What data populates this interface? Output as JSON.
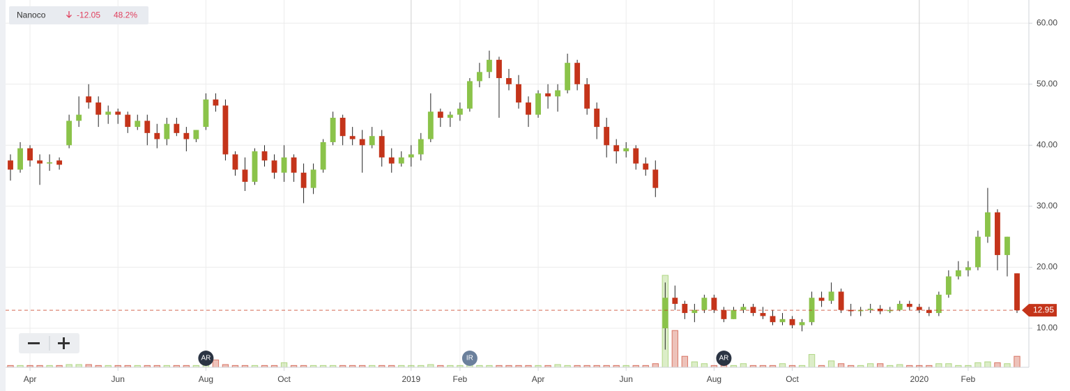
{
  "chart_data": {
    "type": "candlestick",
    "change": "-12.05",
    "change_pct": "48.2%",
    "up_color": "#8bc34a",
    "down_color": "#c4341a",
    "wick_color": "#222222",
    "grid": true,
    "ylim": [
      3.6,
      63.8
    ],
    "yticks": [
      {
        "value": 10,
        "label": "10.00"
      },
      {
        "value": 20,
        "label": "20.00"
      },
      {
        "value": 30,
        "label": "30.00"
      },
      {
        "value": 40,
        "label": "40.00"
      },
      {
        "value": 50,
        "label": "50.00"
      },
      {
        "value": 60,
        "label": "60.00"
      }
    ],
    "last_price": 12.95,
    "last_price_color": "#c4341a",
    "categories": [
      null,
      null,
      "Apr",
      null,
      null,
      null,
      null,
      null,
      null,
      null,
      null,
      "Jun",
      null,
      null,
      null,
      null,
      null,
      null,
      null,
      null,
      "Aug",
      null,
      null,
      null,
      null,
      null,
      null,
      null,
      "Oct",
      null,
      null,
      null,
      null,
      null,
      null,
      null,
      null,
      null,
      null,
      null,
      null,
      "2019",
      null,
      null,
      null,
      null,
      "Feb",
      null,
      null,
      null,
      null,
      null,
      null,
      null,
      "Apr",
      null,
      null,
      null,
      null,
      null,
      null,
      null,
      null,
      "Jun",
      null,
      null,
      null,
      null,
      null,
      null,
      null,
      null,
      "Aug",
      null,
      null,
      null,
      null,
      null,
      null,
      null,
      "Oct",
      null,
      null,
      null,
      null,
      null,
      null,
      null,
      null,
      null,
      null,
      null,
      null,
      "2020",
      null,
      null,
      null,
      null,
      "Feb",
      null,
      null,
      null,
      null,
      null
    ],
    "events": [
      null,
      null,
      null,
      null,
      null,
      null,
      null,
      null,
      null,
      null,
      null,
      null,
      null,
      null,
      null,
      null,
      null,
      null,
      null,
      null,
      "AR",
      null,
      null,
      null,
      null,
      null,
      null,
      null,
      null,
      null,
      null,
      null,
      null,
      null,
      null,
      null,
      null,
      null,
      null,
      null,
      null,
      null,
      null,
      null,
      null,
      null,
      null,
      "IR",
      null,
      null,
      null,
      null,
      null,
      null,
      null,
      null,
      null,
      null,
      null,
      null,
      null,
      null,
      null,
      null,
      null,
      null,
      null,
      null,
      null,
      null,
      null,
      null,
      null,
      "AR",
      null,
      null,
      null,
      null,
      null,
      null,
      null,
      null,
      null,
      null,
      null,
      null,
      null,
      null,
      null,
      null,
      null,
      null,
      null,
      null,
      null,
      null,
      null,
      null,
      null,
      null,
      null,
      null,
      null,
      null
    ],
    "event_colors": {
      "AR": "#2b3443",
      "IR": "#6b809c"
    },
    "volume_lim": [
      0,
      100
    ],
    "volume": [
      2,
      2,
      2,
      2,
      2,
      2,
      3,
      3,
      3,
      2,
      2,
      2,
      2,
      2,
      2,
      2,
      2,
      2,
      2,
      2,
      5,
      8,
      3,
      2,
      2,
      2,
      2,
      2,
      5,
      2,
      2,
      2,
      2,
      2,
      2,
      2,
      2,
      2,
      2,
      2,
      2,
      2,
      2,
      3,
      2,
      2,
      2,
      3,
      2,
      2,
      2,
      2,
      2,
      2,
      2,
      2,
      3,
      2,
      2,
      2,
      2,
      2,
      2,
      2,
      2,
      2,
      4,
      100,
      40,
      12,
      6,
      4,
      2,
      2,
      2,
      4,
      2,
      2,
      2,
      4,
      2,
      2,
      14,
      2,
      7,
      4,
      2,
      2,
      4,
      4,
      2,
      3,
      2,
      2,
      2,
      4,
      4,
      2,
      2,
      5,
      6,
      5,
      4,
      12
    ],
    "series": [
      {
        "name": "Nanoco",
        "values": [
          [
            37.5,
            38.5,
            34.2,
            36.0
          ],
          [
            36,
            40.5,
            35.5,
            39.5
          ],
          [
            39.5,
            40,
            36.5,
            37.5
          ],
          [
            37.5,
            38.5,
            33.5,
            37
          ],
          [
            37,
            38.5,
            35.8,
            37.2
          ],
          [
            37.5,
            38,
            36,
            36.8
          ],
          [
            40,
            45,
            39.5,
            44
          ],
          [
            44,
            48,
            43,
            45
          ],
          [
            48,
            50,
            46,
            47
          ],
          [
            47,
            48,
            43,
            45
          ],
          [
            45,
            46.5,
            43.5,
            45.5
          ],
          [
            45.5,
            46,
            43.5,
            45
          ],
          [
            45,
            45.5,
            42,
            43
          ],
          [
            43,
            45,
            42.5,
            44
          ],
          [
            44,
            45,
            40,
            42
          ],
          [
            42,
            43.5,
            39.5,
            41
          ],
          [
            41,
            44.5,
            40,
            43.5
          ],
          [
            43.5,
            44.5,
            41.5,
            42
          ],
          [
            42,
            43,
            39,
            41
          ],
          [
            41,
            42.5,
            40.5,
            42.5
          ],
          [
            43,
            48.5,
            42.5,
            47.5
          ],
          [
            47.5,
            48.5,
            45.5,
            46.5
          ],
          [
            46.5,
            47.5,
            37.5,
            38.5
          ],
          [
            38.5,
            39,
            35,
            36
          ],
          [
            36,
            38,
            32.5,
            34
          ],
          [
            34,
            39.5,
            33.5,
            39
          ],
          [
            39,
            40,
            36.5,
            37.5
          ],
          [
            37.5,
            38.5,
            34.5,
            35.5
          ],
          [
            35.5,
            40,
            34,
            38
          ],
          [
            38,
            38.5,
            34,
            35.5
          ],
          [
            35.5,
            37,
            30.5,
            33
          ],
          [
            33,
            37,
            32,
            36
          ],
          [
            36,
            41,
            35.5,
            40.5
          ],
          [
            40.5,
            45.5,
            40,
            44.5
          ],
          [
            44.5,
            45,
            40,
            41.5
          ],
          [
            41.5,
            43,
            40,
            41
          ],
          [
            41,
            42.5,
            35.5,
            40
          ],
          [
            40,
            43,
            39.5,
            41.5
          ],
          [
            41.5,
            42.5,
            36.5,
            38
          ],
          [
            38,
            39.5,
            35.5,
            37
          ],
          [
            37,
            39,
            36.5,
            38
          ],
          [
            38,
            40,
            36.5,
            38.5
          ],
          [
            38.5,
            42,
            37.5,
            41
          ],
          [
            41,
            48.5,
            40.5,
            45.5
          ],
          [
            45.5,
            46,
            43,
            44.5
          ],
          [
            44.5,
            45.5,
            43,
            45
          ],
          [
            45,
            47,
            44,
            46
          ],
          [
            46,
            51,
            45.5,
            50.5
          ],
          [
            50.5,
            53.5,
            49.5,
            52
          ],
          [
            52,
            55.5,
            51,
            54
          ],
          [
            54,
            54.5,
            44.5,
            51
          ],
          [
            51,
            52.5,
            49,
            50
          ],
          [
            50,
            51.5,
            46,
            47
          ],
          [
            47,
            48,
            43,
            45
          ],
          [
            45,
            49,
            44.5,
            48.5
          ],
          [
            48.5,
            50,
            46,
            48
          ],
          [
            48,
            50,
            45.5,
            49
          ],
          [
            49,
            55,
            48.5,
            53.5
          ],
          [
            53.5,
            54,
            49,
            50
          ],
          [
            50,
            51,
            45,
            46
          ],
          [
            46,
            47,
            41,
            43
          ],
          [
            43,
            44.5,
            38,
            40
          ],
          [
            40,
            41,
            37,
            39
          ],
          [
            39,
            40.5,
            38,
            39.5
          ],
          [
            39.5,
            40,
            36,
            37
          ],
          [
            37,
            38,
            35,
            36
          ],
          [
            36,
            37.5,
            31.5,
            33
          ],
          [
            10,
            17.5,
            6.5,
            15
          ],
          [
            15,
            17,
            13,
            14
          ],
          [
            14,
            14.5,
            11.5,
            12.5
          ],
          [
            12.5,
            14,
            11,
            13
          ],
          [
            13,
            15.5,
            12.5,
            15
          ],
          [
            15,
            15.5,
            12.5,
            13
          ],
          [
            13,
            13.5,
            11,
            11.5
          ],
          [
            11.5,
            13.5,
            11.5,
            13
          ],
          [
            13,
            14,
            12.5,
            13.5
          ],
          [
            13.5,
            14,
            12,
            12.5
          ],
          [
            12.5,
            13.5,
            11.5,
            12
          ],
          [
            12,
            13,
            10.5,
            11
          ],
          [
            11,
            12.5,
            10.5,
            11.5
          ],
          [
            11.5,
            12,
            10,
            10.5
          ],
          [
            10.5,
            11.5,
            9.5,
            11
          ],
          [
            11,
            16,
            10.5,
            15
          ],
          [
            15,
            16,
            13.5,
            14.5
          ],
          [
            14.5,
            17.5,
            14,
            16
          ],
          [
            16,
            16.5,
            12.5,
            13
          ],
          [
            13,
            14,
            12,
            12.8
          ],
          [
            12.8,
            13.5,
            12,
            13
          ],
          [
            13,
            14,
            12.5,
            13.2
          ],
          [
            13.2,
            13.8,
            12.3,
            12.8
          ],
          [
            12.8,
            13.5,
            12.5,
            13
          ],
          [
            13,
            14.5,
            12.8,
            14
          ],
          [
            14,
            14.5,
            13,
            13.5
          ],
          [
            13.5,
            14,
            12.5,
            13
          ],
          [
            13,
            13.5,
            12,
            12.5
          ],
          [
            12.5,
            16,
            12,
            15.5
          ],
          [
            15.5,
            19.5,
            15,
            18.5
          ],
          [
            18.5,
            21,
            18,
            19.5
          ],
          [
            19.5,
            21,
            18.5,
            20
          ],
          [
            20,
            26,
            19.5,
            25
          ],
          [
            25,
            33,
            24,
            29
          ],
          [
            29,
            29.5,
            19.5,
            22
          ],
          [
            22,
            25,
            18.5,
            25
          ],
          [
            19,
            19,
            12.5,
            12.95
          ]
        ]
      }
    ]
  }
}
